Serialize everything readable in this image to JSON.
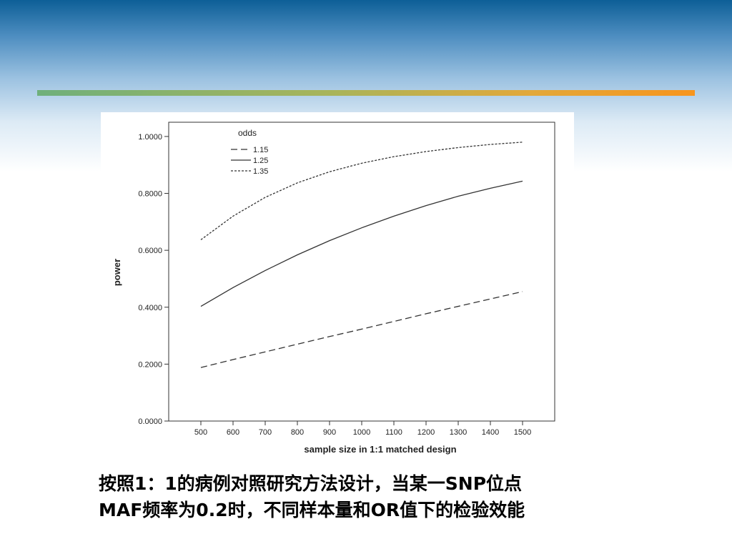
{
  "slide": {
    "caption_lines": [
      "按照1：1的病例对照研究方法设计，当某一SNP位点",
      "MAF频率为0.2时，不同样本量和OR值下的检验效能"
    ],
    "colors": {
      "header_top": "#0d5f97",
      "accent_start": "#6fb07b",
      "accent_end": "#f7951d"
    }
  },
  "chart_data": {
    "type": "line",
    "xlabel": "sample size in 1:1 matched design",
    "ylabel": "power",
    "legend_title": "odds",
    "legend_position": "top-left",
    "x": [
      500,
      600,
      700,
      800,
      900,
      1000,
      1100,
      1200,
      1300,
      1400,
      1500
    ],
    "x_ticks": [
      "500",
      "600",
      "700",
      "800",
      "900",
      "1000",
      "1100",
      "1200",
      "1300",
      "1400",
      "1500"
    ],
    "xlim": [
      400,
      1600
    ],
    "ylim": [
      0,
      1.05
    ],
    "y_ticks": [
      "0.0000",
      "0.2000",
      "0.4000",
      "0.6000",
      "0.8000",
      "1.0000"
    ],
    "y_tick_values": [
      0,
      0.2,
      0.4,
      0.6,
      0.8,
      1.0
    ],
    "grid": false,
    "series": [
      {
        "name": "1.15",
        "style": "long-dash",
        "values": [
          0.188,
          0.216,
          0.243,
          0.27,
          0.297,
          0.323,
          0.35,
          0.377,
          0.403,
          0.429,
          0.455
        ]
      },
      {
        "name": "1.25",
        "style": "solid",
        "values": [
          0.403,
          0.469,
          0.529,
          0.584,
          0.634,
          0.679,
          0.72,
          0.757,
          0.79,
          0.818,
          0.843
        ]
      },
      {
        "name": "1.35",
        "style": "short-dash",
        "values": [
          0.637,
          0.72,
          0.786,
          0.837,
          0.876,
          0.906,
          0.929,
          0.947,
          0.961,
          0.972,
          0.98
        ]
      }
    ]
  }
}
